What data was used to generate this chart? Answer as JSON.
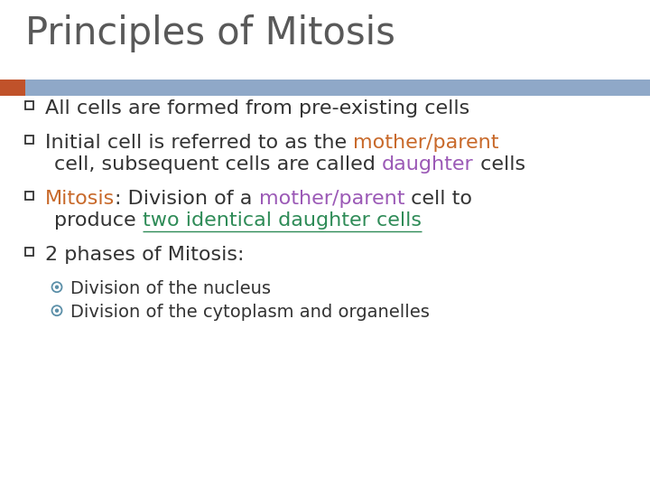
{
  "title": "Principles of Mitosis",
  "title_color": "#595959",
  "title_fontsize": 30,
  "bg_color": "#ffffff",
  "header_bar_color": "#8fa8c8",
  "header_bar_orange": "#c0522a",
  "bullet_color": "#333333",
  "bullet_size": 16,
  "sub_bullet_size": 14,
  "orange_color": "#c8692a",
  "purple_color": "#9b59b6",
  "green_color": "#2e8b57",
  "lines": [
    {
      "type": "bullet",
      "segments": [
        {
          "text": "All cells are formed from pre-existing cells",
          "color": "#333333",
          "underline": false
        }
      ]
    },
    {
      "type": "bullet",
      "segments": [
        {
          "text": "Initial cell is referred to as the ",
          "color": "#333333",
          "underline": false
        },
        {
          "text": "mother/parent",
          "color": "#c8692a",
          "underline": false
        }
      ]
    },
    {
      "type": "continuation",
      "segments": [
        {
          "text": "cell, subsequent cells are called ",
          "color": "#333333",
          "underline": false
        },
        {
          "text": "daughter",
          "color": "#9b59b6",
          "underline": false
        },
        {
          "text": " cells",
          "color": "#333333",
          "underline": false
        }
      ]
    },
    {
      "type": "bullet",
      "segments": [
        {
          "text": "Mitosis",
          "color": "#c8692a",
          "underline": false
        },
        {
          "text": ": Division of a ",
          "color": "#333333",
          "underline": false
        },
        {
          "text": "mother/parent",
          "color": "#9b59b6",
          "underline": false
        },
        {
          "text": " cell to",
          "color": "#333333",
          "underline": false
        }
      ]
    },
    {
      "type": "continuation",
      "segments": [
        {
          "text": "produce ",
          "color": "#333333",
          "underline": false
        },
        {
          "text": "two identical daughter cells",
          "color": "#2e8b57",
          "underline": true
        }
      ]
    },
    {
      "type": "bullet",
      "segments": [
        {
          "text": "2 phases of Mitosis:",
          "color": "#333333",
          "underline": false
        }
      ]
    },
    {
      "type": "sub_bullet",
      "segments": [
        {
          "text": "Division of the nucleus",
          "color": "#333333",
          "underline": false
        }
      ]
    },
    {
      "type": "sub_bullet",
      "segments": [
        {
          "text": "Division of the cytoplasm and organelles",
          "color": "#333333",
          "underline": false
        }
      ]
    }
  ]
}
